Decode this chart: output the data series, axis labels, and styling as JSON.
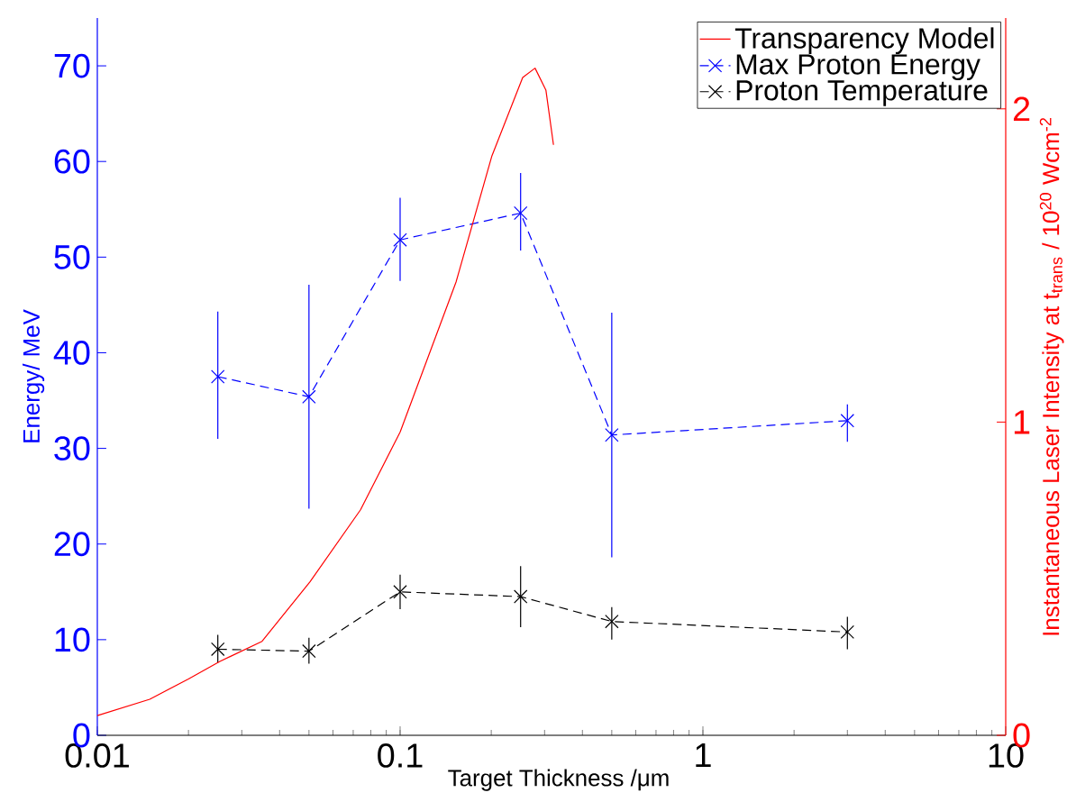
{
  "chart_data": {
    "type": "line",
    "xlabel": "Target Thickness /μm",
    "ylabel": "Energy/ MeV",
    "y2label": "Instantaneous Laser Intensity at t$_{trans}$ / 10$^{20}$ Wcm$^{-2}$",
    "log": "x",
    "xlim": [
      0.01,
      10
    ],
    "xticks": [
      0.01,
      0.1,
      1,
      10
    ],
    "ylim": [
      0,
      75
    ],
    "yticks": [
      0,
      10,
      20,
      30,
      40,
      50,
      60,
      70
    ],
    "y2lim": [
      0,
      2.29
    ],
    "y2ticks": [
      0,
      1,
      2
    ],
    "legend": "top right",
    "grid": false,
    "series": [
      {
        "name": "Transparency Model",
        "color": "#ff0000",
        "axis": "y2",
        "line_style": "solid",
        "marker": "none",
        "x": [
          0.01,
          0.0149,
          0.02,
          0.0254,
          0.035,
          0.0504,
          0.074,
          0.1,
          0.153,
          0.201,
          0.254,
          0.279,
          0.303,
          0.321
        ],
        "values": [
          0.063,
          0.115,
          0.18,
          0.236,
          0.3,
          0.49,
          0.72,
          0.968,
          1.447,
          1.85,
          2.1,
          2.13,
          2.06,
          1.885
        ]
      },
      {
        "name": "Max Proton Energy",
        "color": "#0000ff",
        "line_style": "dashed",
        "marker": "cross",
        "x": [
          0.025,
          0.05,
          0.1,
          0.25,
          0.5,
          3
        ],
        "values": [
          37.5,
          35.4,
          51.8,
          54.6,
          31.4,
          32.9
        ],
        "errors": [
          [
            31,
            44.3
          ],
          [
            23.7,
            47.1
          ],
          [
            47.5,
            56.2
          ],
          [
            50.7,
            58.8
          ],
          [
            18.6,
            44.2
          ],
          [
            30.7,
            34.6
          ]
        ]
      },
      {
        "name": "Proton Temperature",
        "color": "#000000",
        "line_style": "dashed",
        "marker": "cross",
        "x": [
          0.025,
          0.05,
          0.1,
          0.25,
          0.5,
          3
        ],
        "values": [
          9.0,
          8.8,
          15.0,
          14.5,
          11.9,
          10.8
        ],
        "errors": [
          [
            7.6,
            10.5
          ],
          [
            7.5,
            10.2
          ],
          [
            13.2,
            16.8
          ],
          [
            11.3,
            17.7
          ],
          [
            10.0,
            13.4
          ],
          [
            9.0,
            12.4
          ]
        ]
      }
    ]
  }
}
